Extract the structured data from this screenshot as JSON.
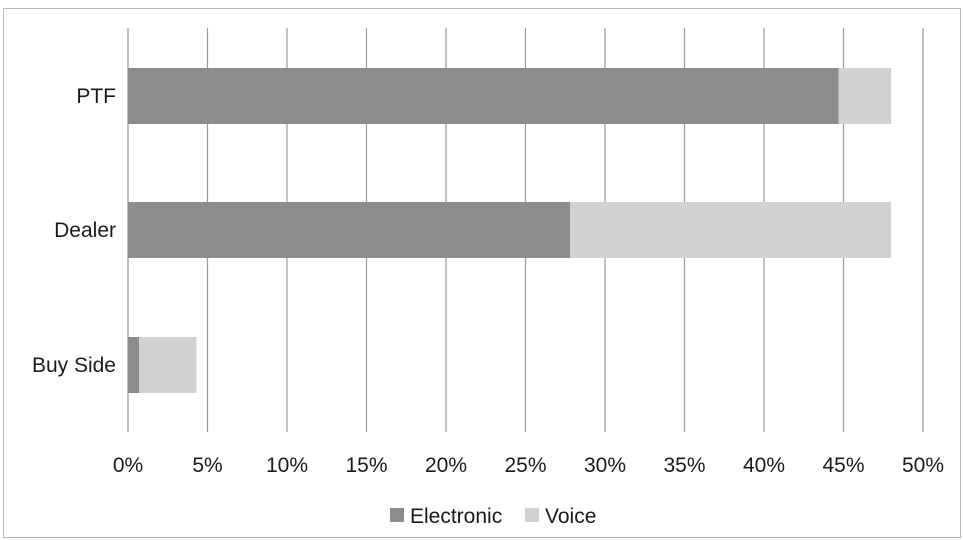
{
  "chart_data": {
    "type": "bar",
    "orientation": "horizontal",
    "stacked": true,
    "categories": [
      "PTF",
      "Dealer",
      "Buy Side"
    ],
    "series": [
      {
        "name": "Electronic",
        "color": "#8b8c8e",
        "values": [
          44.7,
          27.8,
          0.7
        ]
      },
      {
        "name": "Voice",
        "color": "#d0d1d3",
        "values": [
          3.3,
          20.2,
          3.6
        ]
      }
    ],
    "xlim": [
      0,
      50
    ],
    "xticks": [
      "0%",
      "5%",
      "10%",
      "15%",
      "20%",
      "25%",
      "30%",
      "35%",
      "40%",
      "45%",
      "50%"
    ],
    "xtick_values": [
      0,
      5,
      10,
      15,
      20,
      25,
      30,
      35,
      40,
      45,
      50
    ],
    "grid": "vertical",
    "gridline_color": "#9a9a9a",
    "legend_position": "bottom"
  }
}
